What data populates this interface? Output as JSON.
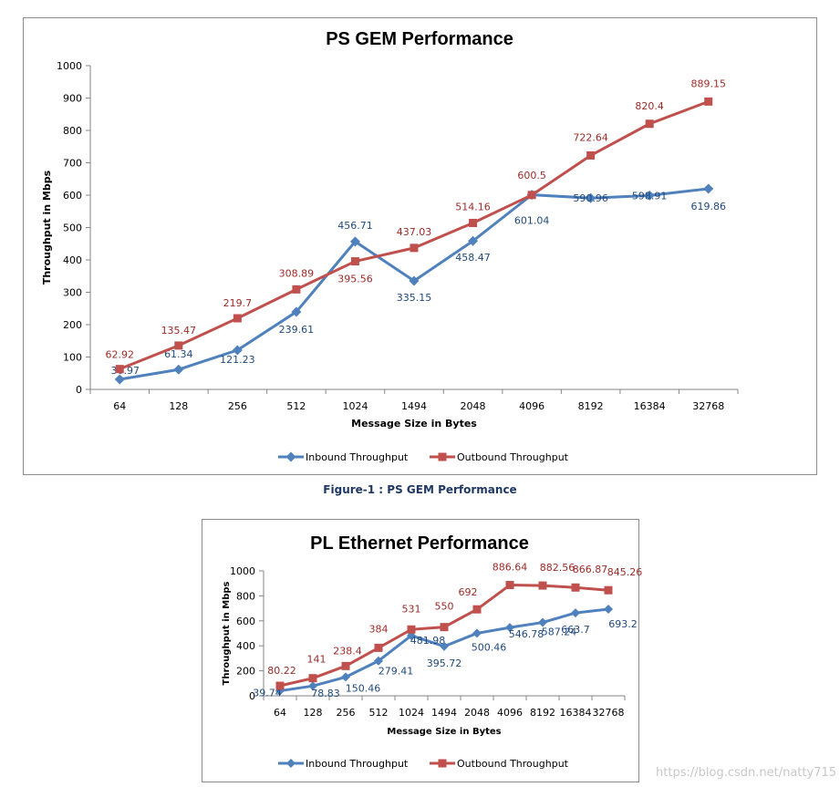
{
  "colors": {
    "inbound": "#4f81bd",
    "outbound": "#c0504d",
    "inbound_label": "#1f497d",
    "outbound_label": "#9b2b27"
  },
  "caption": "Figure-1 : PS GEM Performance",
  "watermark": "https://blog.csdn.net/natty715",
  "chart_data": [
    {
      "type": "line",
      "title": "PS GEM Performance",
      "xlabel": "Message Size in Bytes",
      "ylabel": "Throughput in Mbps",
      "categories": [
        "64",
        "128",
        "256",
        "512",
        "1024",
        "1494",
        "2048",
        "4096",
        "8192",
        "16384",
        "32768"
      ],
      "ylim": [
        0,
        1000
      ],
      "yticks": [
        "0",
        "100",
        "200",
        "300",
        "400",
        "500",
        "600",
        "700",
        "800",
        "900",
        "1000"
      ],
      "legend_position": "bottom",
      "series": [
        {
          "name": "Inbound Throughput",
          "values": [
            30.97,
            61.34,
            121.23,
            239.61,
            456.71,
            335.15,
            458.47,
            601.04,
            590.96,
            598.91,
            619.86
          ],
          "labels": [
            "30.97",
            "61.34",
            "121.23",
            "239.61",
            "456.71",
            "335.15",
            "458.47",
            "601.04",
            "590.96",
            "598.91",
            "619.86"
          ]
        },
        {
          "name": "Outbound Throughput",
          "values": [
            62.92,
            135.47,
            219.7,
            308.89,
            395.56,
            437.03,
            514.16,
            600.5,
            722.64,
            820.4,
            889.15
          ],
          "labels": [
            "62.92",
            "135.47",
            "219.7",
            "308.89",
            "395.56",
            "437.03",
            "514.16",
            "600.5",
            "722.64",
            "820.4",
            "889.15"
          ]
        }
      ]
    },
    {
      "type": "line",
      "title": "PL Ethernet Performance",
      "xlabel": "Message Size in Bytes",
      "ylabel": "Throughput in Mbps",
      "categories": [
        "64",
        "128",
        "256",
        "512",
        "1024",
        "1494",
        "2048",
        "4096",
        "8192",
        "16384",
        "32768"
      ],
      "ylim": [
        0,
        1000
      ],
      "yticks": [
        "0",
        "200",
        "400",
        "600",
        "800",
        "1000"
      ],
      "legend_position": "bottom",
      "series": [
        {
          "name": "Inbound Throughput",
          "values": [
            39.74,
            78.83,
            150.46,
            279.41,
            481.98,
            395.72,
            500.46,
            546.78,
            587.24,
            663.7,
            693.2
          ],
          "labels": [
            "39.74",
            "78.83",
            "150.46",
            "279.41",
            "481.98",
            "395.72",
            "500.46",
            "546.78",
            "587.24",
            "663.7",
            "693.2"
          ]
        },
        {
          "name": "Outbound Throughput",
          "values": [
            80.22,
            141,
            238.4,
            384,
            531,
            550,
            692,
            886.64,
            882.56,
            866.87,
            845.26
          ],
          "labels": [
            "80.22",
            "141",
            "238.4",
            "384",
            "531",
            "550",
            "692",
            "886.64",
            "882.56",
            "866.87",
            "845.26"
          ]
        }
      ]
    }
  ]
}
